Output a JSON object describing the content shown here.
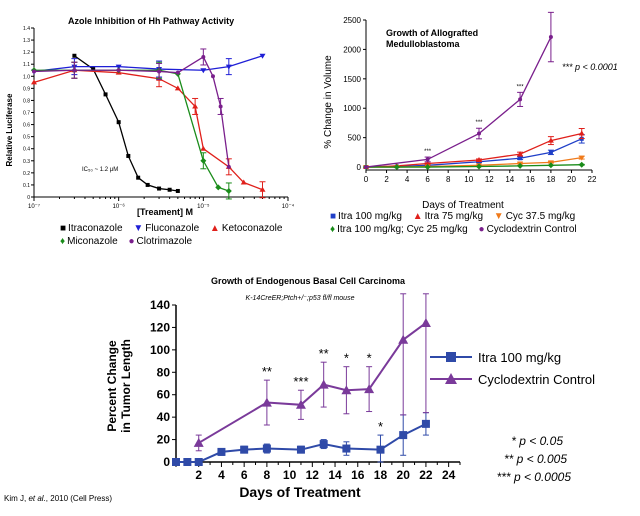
{
  "charts": [
    {
      "id": "azole",
      "title": "Azole Inhibition of Hh Pathway Activity",
      "xlabel": "[Treament] M",
      "ylabel": "Relative Luciferase",
      "xlim_exp": [
        -7,
        -4
      ],
      "ylim": [
        0,
        1.4
      ],
      "xtick_labels": [
        "10⁻⁷",
        "10⁻⁶",
        "10⁻⁵",
        "10⁻⁴"
      ],
      "ytick_labels": [
        "0",
        "0.1",
        "0.2",
        "0.3",
        "0.4",
        "0.5",
        "0.6",
        "0.7",
        "0.8",
        "0.9",
        "1.0",
        "1.1",
        "1.2",
        "1.3",
        "1.4"
      ],
      "annotation": "IC₅₀ ~ 1.2 μM",
      "legend": [
        {
          "label": "Itraconazole",
          "color": "#000000",
          "symbol": "■"
        },
        {
          "label": "Fluconazole",
          "color": "#1f1fd6",
          "symbol": "▼"
        },
        {
          "label": "Ketoconazole",
          "color": "#e0201b",
          "symbol": "▲"
        },
        {
          "label": "Miconazole",
          "color": "#1a8c1a",
          "symbol": "♦"
        },
        {
          "label": "Clotrimazole",
          "color": "#7a1f8c",
          "symbol": "●"
        }
      ]
    },
    {
      "id": "allograft",
      "title_lines": [
        "Growth of Allografted",
        "Medulloblastoma"
      ],
      "xlabel": "Days of Treatment",
      "ylabel": "% Change in Volume",
      "xlim": [
        0,
        22
      ],
      "ylim": [
        -50,
        2500
      ],
      "xticks": [
        "0",
        "2",
        "4",
        "6",
        "8",
        "10",
        "12",
        "14",
        "16",
        "18",
        "20",
        "22"
      ],
      "yticks": [
        "0",
        "500",
        "1000",
        "1500",
        "2000",
        "2500"
      ],
      "sig_label": "*** p < 0.0001",
      "stars": "***",
      "legend_rows": [
        [
          {
            "label": "Itra 100 mg/kg",
            "color": "#1f3fc8",
            "symbol": "■"
          },
          {
            "label": "Itra 75 mg/kg",
            "color": "#e0201b",
            "symbol": "▲"
          },
          {
            "label": "Cyc 37.5 mg/kg",
            "color": "#f07a1a",
            "symbol": "▼"
          }
        ],
        [
          {
            "label": "Itra 100 mg/kg; Cyc 25 mg/kg",
            "color": "#1a8c1a",
            "symbol": "♦"
          },
          {
            "label": "Cyclodextrin Control",
            "color": "#7a1f8c",
            "symbol": "●"
          }
        ]
      ]
    },
    {
      "id": "bcc",
      "title": "Growth of Endogenous Basal Cell Carcinoma",
      "subtitle": "K-14CreER;Ptch+/⁻;p53 fl/fl mouse",
      "xlabel": "Days of Treatment",
      "ylabel_lines": [
        "Percent Change",
        "in Tumor Length"
      ],
      "xticks": [
        "2",
        "4",
        "6",
        "8",
        "10",
        "12",
        "14",
        "16",
        "18",
        "20",
        "22",
        "24"
      ],
      "yticks": [
        "0",
        "20",
        "40",
        "60",
        "80",
        "100",
        "120",
        "140"
      ],
      "stars": [
        "**",
        "***",
        "**",
        "*",
        "*",
        "*"
      ],
      "legend": [
        {
          "label": "Itra 100 mg/kg",
          "color": "#2f4aa8"
        },
        {
          "label": "Cyclodextrin Control",
          "color": "#7a3a9a"
        }
      ],
      "sig_lines": [
        "* p < 0.05",
        "** p < 0.005",
        "*** p < 0.0005"
      ]
    }
  ],
  "chart_data": [
    {
      "type": "line",
      "title": "Azole Inhibition of Hh Pathway Activity",
      "xscale": "log",
      "xlim": [
        1e-07,
        0.0001
      ],
      "ylim": [
        0,
        1.4
      ],
      "series": [
        {
          "name": "Itraconazole",
          "x": [
            3e-07,
            5e-07,
            7e-07,
            1e-06,
            1.3e-06,
            1.7e-06,
            2.2e-06,
            3e-06,
            4e-06,
            5e-06
          ],
          "y": [
            1.17,
            1.06,
            0.85,
            0.62,
            0.34,
            0.16,
            0.1,
            0.07,
            0.06,
            0.05
          ]
        },
        {
          "name": "Fluconazole",
          "x": [
            1e-07,
            3e-07,
            1e-06,
            3e-06,
            1e-05,
            2e-05,
            5e-05
          ],
          "y": [
            1.04,
            1.08,
            1.08,
            1.06,
            1.05,
            1.08,
            1.17
          ]
        },
        {
          "name": "Ketoconazole",
          "x": [
            1e-07,
            3e-07,
            1e-06,
            3e-06,
            5e-06,
            8e-06,
            1e-05,
            2e-05,
            3e-05,
            5e-05
          ],
          "y": [
            0.95,
            1.05,
            1.03,
            0.98,
            0.9,
            0.75,
            0.4,
            0.25,
            0.12,
            0.06
          ]
        },
        {
          "name": "Miconazole",
          "x": [
            1e-07,
            3e-07,
            1e-06,
            3e-06,
            5e-06,
            1e-05,
            1.5e-05,
            2e-05
          ],
          "y": [
            1.05,
            1.05,
            1.05,
            1.05,
            1.02,
            0.3,
            0.08,
            0.05
          ]
        },
        {
          "name": "Clotrimazole",
          "x": [
            1e-07,
            3e-07,
            1e-06,
            3e-06,
            5e-06,
            1e-05,
            1.3e-05,
            1.6e-05,
            2e-05
          ],
          "y": [
            1.04,
            1.05,
            1.05,
            1.04,
            1.03,
            1.16,
            1.0,
            0.75,
            0.25
          ]
        }
      ]
    },
    {
      "type": "line",
      "title": "Growth of Allografted Medulloblastoma",
      "x": [
        0,
        3,
        6,
        11,
        15,
        18,
        21
      ],
      "series": [
        {
          "name": "Itra 100 mg/kg",
          "x": [
            0,
            3,
            6,
            11,
            15,
            18,
            21
          ],
          "y": [
            0,
            10,
            30,
            90,
            150,
            250,
            480
          ]
        },
        {
          "name": "Itra 75 mg/kg",
          "x": [
            0,
            3,
            6,
            11,
            15,
            18,
            21
          ],
          "y": [
            0,
            20,
            60,
            120,
            220,
            450,
            570
          ]
        },
        {
          "name": "Cyc 37.5 mg/kg",
          "x": [
            0,
            3,
            6,
            11,
            15,
            18,
            21
          ],
          "y": [
            0,
            0,
            10,
            30,
            60,
            80,
            160
          ]
        },
        {
          "name": "Itra 100 mg/kg; Cyc 25 mg/kg",
          "x": [
            0,
            3,
            6,
            11,
            15,
            18,
            21
          ],
          "y": [
            0,
            0,
            0,
            10,
            20,
            30,
            40
          ]
        },
        {
          "name": "Cyclodextrin Control",
          "x": [
            0,
            6,
            11,
            15,
            18
          ],
          "y": [
            0,
            130,
            570,
            1150,
            2210
          ],
          "err": [
            20,
            40,
            90,
            120,
            420
          ]
        }
      ]
    },
    {
      "type": "line",
      "title": "Growth of Endogenous Basal Cell Carcinoma",
      "xlim": [
        0,
        25
      ],
      "ylim": [
        0,
        140
      ],
      "series": [
        {
          "name": "Itra 100 mg/kg",
          "x": [
            0,
            1,
            2,
            4,
            6,
            8,
            11,
            13,
            15,
            18,
            20,
            22
          ],
          "y": [
            0,
            0,
            0,
            9,
            11,
            12,
            11,
            16,
            12,
            11,
            24,
            34
          ],
          "err": [
            1,
            1,
            1,
            3,
            3,
            4,
            3,
            4,
            6,
            13,
            18,
            10
          ]
        },
        {
          "name": "Cyclodextrin Control",
          "x": [
            2,
            8,
            11,
            13,
            15,
            17,
            20,
            22
          ],
          "y": [
            17,
            53,
            51,
            69,
            64,
            65,
            109,
            124
          ],
          "err": [
            7,
            20,
            13,
            20,
            21,
            20,
            67,
            80
          ]
        }
      ]
    }
  ]
}
